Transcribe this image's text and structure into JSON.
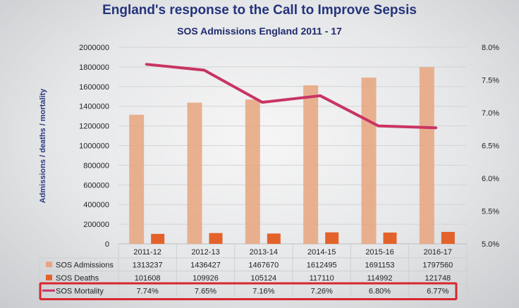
{
  "slide_title": "England's response to the Call to Improve Sepsis",
  "chart_data": {
    "type": "bar",
    "title": "SOS Admissions England 2011 - 17",
    "categories": [
      "2011-12",
      "2012-13",
      "2013-14",
      "2014-15",
      "2015-16",
      "2016-17"
    ],
    "series": [
      {
        "name": "SOS Admissions",
        "axis": "left",
        "kind": "bar",
        "values": [
          1313237,
          1436427,
          1467670,
          1612495,
          1691153,
          1797560
        ],
        "display": [
          "1313237",
          "1436427",
          "1467670",
          "1612495",
          "1691153",
          "1797560"
        ],
        "color": "#e8a57e"
      },
      {
        "name": "SOS Deaths",
        "axis": "left",
        "kind": "bar",
        "values": [
          101608,
          109926,
          105124,
          117110,
          114992,
          121748
        ],
        "display": [
          "101608",
          "109926",
          "105124",
          "117110",
          "114992",
          "121748"
        ],
        "color": "#e3622a"
      },
      {
        "name": "SOS Mortality",
        "axis": "right",
        "kind": "line",
        "values": [
          7.74,
          7.65,
          7.16,
          7.26,
          6.8,
          6.77
        ],
        "display": [
          "7.74%",
          "7.65%",
          "7.16%",
          "7.26%",
          "6.80%",
          "6.77%"
        ],
        "color": "#c93463"
      }
    ],
    "ylabel": "Admissions / deaths / mortality",
    "ylim": [
      0,
      2000000
    ],
    "yticks": [
      0,
      200000,
      400000,
      600000,
      800000,
      1000000,
      1200000,
      1400000,
      1600000,
      1800000,
      2000000
    ],
    "y2lim": [
      5.0,
      8.0
    ],
    "y2ticks": [
      "5.0%",
      "5.5%",
      "6.0%",
      "6.5%",
      "7.0%",
      "7.5%",
      "8.0%"
    ],
    "y2tick_values": [
      5.0,
      5.5,
      6.0,
      6.5,
      7.0,
      7.5,
      8.0
    ],
    "highlight_color": "#d8262e"
  }
}
